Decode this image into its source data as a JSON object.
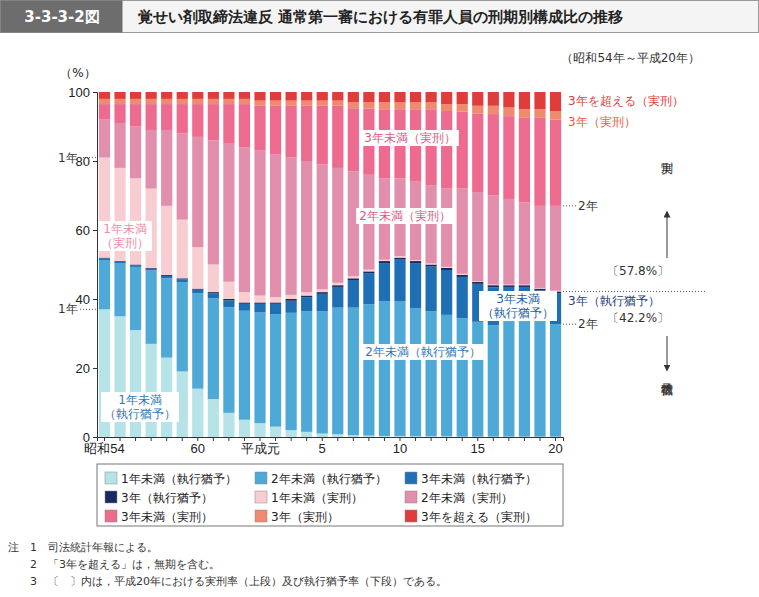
{
  "chart_data": {
    "type": "bar",
    "stacked": true,
    "figure_number": "3-3-3-2図",
    "title": "覚せい剤取締法違反 通常第一審における有罪人員の刑期別構成比の推移",
    "subtitle": "（昭和54年～平成20年）",
    "y_label": "（%）",
    "categories": [
      "昭和54",
      null,
      null,
      null,
      null,
      null,
      "60",
      null,
      null,
      null,
      "平成元",
      null,
      null,
      null,
      "5",
      null,
      null,
      null,
      null,
      "10",
      null,
      null,
      null,
      null,
      "15",
      null,
      null,
      null,
      null,
      "20"
    ],
    "ylim": [
      0,
      100
    ],
    "yticks": [
      0,
      20,
      40,
      60,
      80,
      100
    ],
    "grid": false,
    "legend": "bottom",
    "series": [
      {
        "name": "1年未満（執行猶予）",
        "color": "#b5e3e8",
        "values": [
          37,
          35,
          31,
          27,
          23,
          19,
          14,
          11,
          7,
          5,
          4,
          3,
          2,
          1.5,
          1,
          0.8,
          0.5,
          0.4,
          0.3,
          0.3,
          0.2,
          0.2,
          0.2,
          0.1,
          0.1,
          0.1,
          0.1,
          0.1,
          0.1,
          0.1
        ]
      },
      {
        "name": "2年未満（執行猶予）",
        "color": "#4fa9d6",
        "values": [
          14.3,
          15.3,
          18.3,
          21.3,
          23,
          25.9,
          27.7,
          29.2,
          30.6,
          31.6,
          32.1,
          32.6,
          34,
          35,
          35.5,
          36.7,
          37,
          38.1,
          39.1,
          39.1,
          37.2,
          36.2,
          35.2,
          34.3,
          33.3,
          32.3,
          33.4,
          33.4,
          33.4,
          32.6
        ]
      },
      {
        "name": "3年未満（執行猶予）",
        "color": "#1f6fb5",
        "values": [
          0.5,
          0.5,
          0.5,
          0.5,
          0.7,
          0.8,
          1,
          1.5,
          2,
          2,
          2.5,
          3,
          3.5,
          4,
          5,
          6,
          8,
          9,
          11,
          12,
          13,
          13,
          13,
          12,
          11,
          11,
          10,
          10,
          9,
          9
        ]
      },
      {
        "name": "3年（執行猶予）",
        "color": "#1a2a5e",
        "values": [
          0.2,
          0.2,
          0.2,
          0.2,
          0.3,
          0.3,
          0.3,
          0.3,
          0.4,
          0.4,
          0.4,
          0.4,
          0.5,
          0.5,
          0.5,
          0.5,
          0.5,
          0.5,
          0.6,
          0.6,
          0.6,
          0.6,
          0.6,
          0.6,
          0.6,
          0.6,
          0.5,
          0.5,
          0.5,
          0.5
        ]
      },
      {
        "name": "1年未満（実刑）",
        "color": "#f8cdd2",
        "values": [
          29,
          27,
          25,
          23,
          20,
          17,
          12,
          8,
          5,
          3,
          2,
          1.5,
          1.2,
          1,
          0.8,
          0.7,
          0.6,
          0.5,
          0.4,
          0.4,
          0.3,
          0.3,
          0.3,
          0.3,
          0.2,
          0.2,
          0.2,
          0.2,
          0.2,
          0.2
        ]
      },
      {
        "name": "2年未満（実刑）",
        "color": "#e28fae",
        "values": [
          11,
          13,
          15,
          17,
          22,
          25,
          32,
          36,
          40,
          42,
          42,
          41.5,
          39.8,
          38,
          36.2,
          33.3,
          30.4,
          27.5,
          23.6,
          22.6,
          22.7,
          22.7,
          22.7,
          24.7,
          25.8,
          25.8,
          24.8,
          23.8,
          23.8,
          24.6
        ]
      },
      {
        "name": "3年未満（実刑）",
        "color": "#ec6b8e",
        "values": [
          4.5,
          5.5,
          6.5,
          7.5,
          7.5,
          8.5,
          9.5,
          10.5,
          11.5,
          12.5,
          13,
          14,
          15,
          16,
          17,
          18,
          18.3,
          19.2,
          20,
          20,
          21,
          22,
          22.5,
          22.3,
          22.7,
          23.6,
          24,
          24.5,
          25.5,
          25
        ]
      },
      {
        "name": "3年（実刑）",
        "color": "#f08a6e",
        "values": [
          1.5,
          1.5,
          1.5,
          1.5,
          1.5,
          1.5,
          1.5,
          1.5,
          1.5,
          1.5,
          1.5,
          1.5,
          1.5,
          1.5,
          1.5,
          1.5,
          1.7,
          1.8,
          2,
          2,
          2,
          2,
          2,
          2.2,
          2.3,
          2.4,
          2.5,
          2.5,
          2.5,
          2.5
        ]
      },
      {
        "name": "3年を超える（実刑）",
        "color": "#e03c3c",
        "values": [
          2,
          2,
          2,
          2,
          2,
          2,
          2,
          2,
          2,
          2,
          2.5,
          2.5,
          2.5,
          2.5,
          2.5,
          2.5,
          3,
          3,
          3,
          3,
          3,
          3,
          3.5,
          3.5,
          4,
          4,
          4.5,
          5,
          5,
          5.5
        ]
      }
    ],
    "rates": [
      {
        "value": 57.8,
        "label": "〔57.8%〕"
      },
      {
        "value": 42.2,
        "label": "〔42.2%〕"
      }
    ],
    "annotations": [
      {
        "text": [
          "1年未満",
          "（実刑）"
        ]
      },
      {
        "text": [
          "3年未満（実刑）"
        ]
      },
      {
        "text": [
          "2年未満（実刑）"
        ]
      },
      {
        "text": [
          "3年未満",
          "（執行猶予）"
        ]
      },
      {
        "text": [
          "2年未満（執行猶予）"
        ]
      },
      {
        "text": [
          "1年未満",
          "（執行猶予）"
        ]
      },
      {
        "text": [
          "1年"
        ]
      },
      {
        "text": [
          "1年"
        ]
      },
      {
        "text": [
          "3年を超える（実刑）"
        ]
      },
      {
        "text": [
          "3年（実刑）"
        ]
      },
      {
        "text": [
          "実刑"
        ]
      },
      {
        "text": [
          "2年"
        ]
      },
      {
        "text": [
          "3年（執行猶予）"
        ]
      },
      {
        "text": [
          "2年"
        ]
      },
      {
        "text": [
          "執行猶予"
        ]
      }
    ],
    "notes_heading": "注",
    "notes": [
      "1　司法統計年報による。",
      "2　「3年を超える」は，無期を含む。",
      "3　〔　〕内は，平成20年における実刑率（上段）及び執行猶予率（下段）である。"
    ]
  }
}
